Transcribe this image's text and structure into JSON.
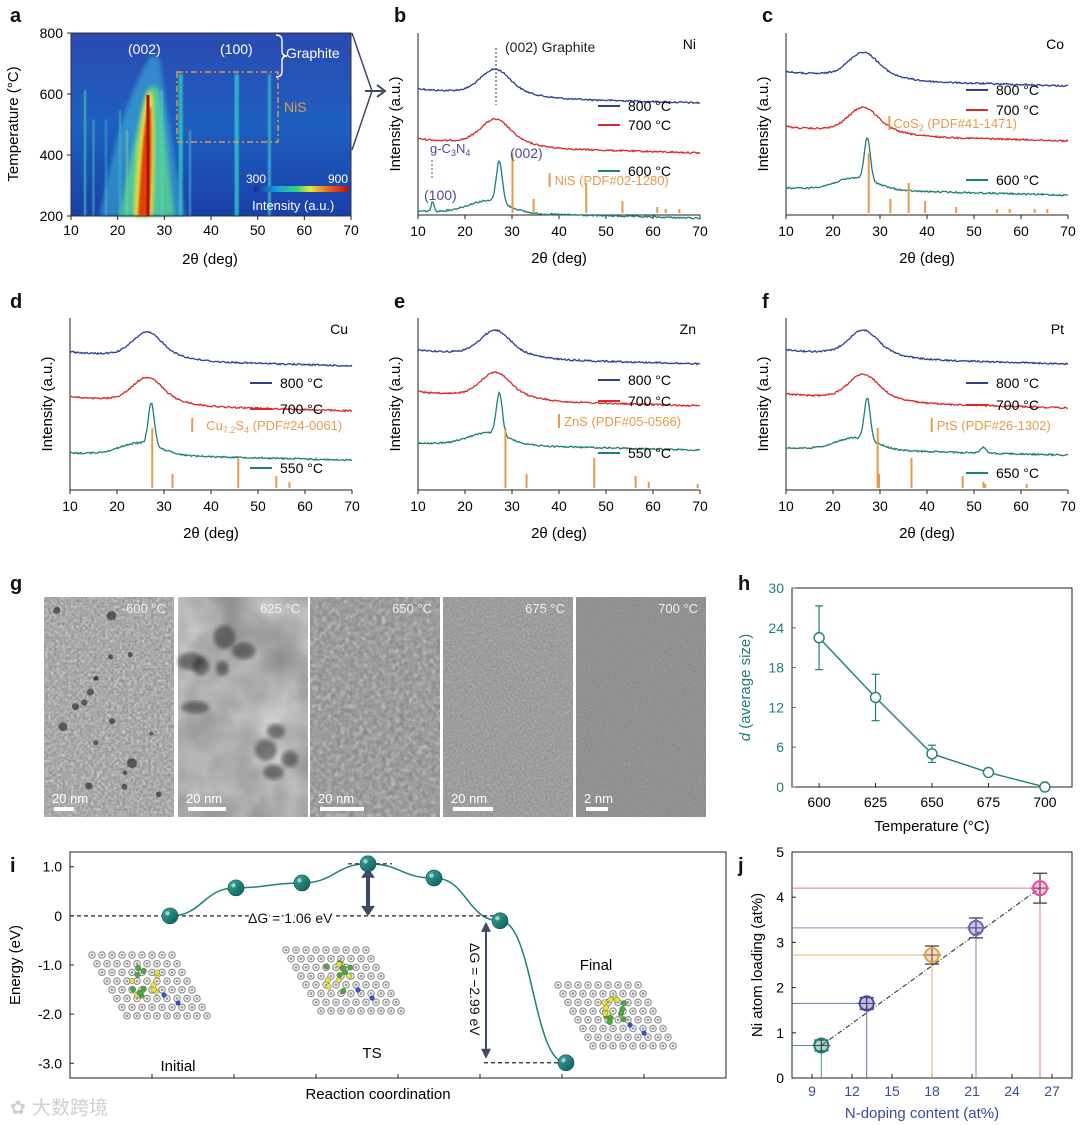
{
  "panel_letters": {
    "a": "a",
    "b": "b",
    "c": "c",
    "d": "d",
    "e": "e",
    "f": "f",
    "g": "g",
    "h": "h",
    "i": "i",
    "j": "j"
  },
  "common": {
    "xlabel_theta": "2θ (deg)",
    "ylabel_intensity": "Intensity (a.u.)",
    "x_ticks": [
      "10",
      "20",
      "30",
      "40",
      "50",
      "60",
      "70"
    ]
  },
  "colors": {
    "c800": "#2e3f94",
    "c700": "#d92a2a",
    "clow": "#1e7f78",
    "ref": "#e89a4a",
    "purple": "#5a55a8",
    "dark": "#1a1a1a"
  },
  "panel_a": {
    "ylabel": "Temperature (°C)",
    "y_ticks": [
      "800",
      "600",
      "400",
      "200"
    ],
    "label_002": "(002)",
    "label_100": "(100)",
    "label_graphite": "Graphite",
    "label_nis": "NiS",
    "cbar_min": "300",
    "cbar_max": "900",
    "cbar_label": "Intensity (a.u.)"
  },
  "xrd_panels": [
    {
      "metal": "Ni",
      "temps": [
        "800 °C",
        "700 °C",
        "600 °C"
      ],
      "ref": "NiS (PDF#02-1280)",
      "ann": {
        "graphite": "(002) Graphite",
        "gcn": "g-C3N4",
        "p002": "(002)",
        "p100": "(100)"
      }
    },
    {
      "metal": "Co",
      "temps": [
        "800 °C",
        "700 °C",
        "600 °C"
      ],
      "ref": "CoS2 (PDF#41-1471)"
    },
    {
      "metal": "Cu",
      "temps": [
        "800 °C",
        "700 °C",
        "550 °C"
      ],
      "ref": "Cu7.2S4 (PDF#24-0061)"
    },
    {
      "metal": "Zn",
      "temps": [
        "800 °C",
        "700 °C",
        "550 °C"
      ],
      "ref": "ZnS (PDF#05-0566)"
    },
    {
      "metal": "Pt",
      "temps": [
        "800 °C",
        "700 °C",
        "650 °C"
      ],
      "ref": "PtS (PDF#26-1302)"
    }
  ],
  "panel_g": {
    "images": [
      {
        "temp": "600 °C",
        "scale": "20 nm"
      },
      {
        "temp": "625 °C",
        "scale": "20 nm"
      },
      {
        "temp": "650 °C",
        "scale": "20 nm"
      },
      {
        "temp": "675 °C",
        "scale": "20 nm"
      },
      {
        "temp": "700 °C",
        "scale": "2 nm"
      }
    ]
  },
  "chart_data": [
    {
      "panel": "h",
      "type": "line",
      "x": [
        600,
        625,
        650,
        675,
        700
      ],
      "values": [
        22.5,
        13.5,
        5.0,
        2.2,
        0.0
      ],
      "errors": [
        4.8,
        3.5,
        1.3,
        0.4,
        0.1
      ],
      "x_ticks": [
        "600",
        "625",
        "650",
        "675",
        "700"
      ],
      "y_ticks": [
        "0",
        "6",
        "12",
        "18",
        "24",
        "30"
      ],
      "xlim": [
        588,
        712
      ],
      "ylim": [
        0,
        30
      ],
      "xlabel": "Temperature (°C)",
      "ylabel_italic": "d",
      "ylabel_rest": " (average size)"
    },
    {
      "panel": "i",
      "type": "line",
      "values": [
        0,
        0.57,
        0.67,
        1.06,
        0.77,
        -0.1,
        -2.99
      ],
      "y_ticks": [
        "1.0",
        "0",
        "-1.0",
        "-2.0",
        "-3.0"
      ],
      "ylim": [
        -3.3,
        1.3
      ],
      "ylabel": "Energy (eV)",
      "xlabel": "Reaction coordination",
      "dg1": "ΔG = 1.06 eV",
      "dg2": "ΔG = −2.99 eV",
      "states": [
        "Initial",
        "TS",
        "Final"
      ]
    },
    {
      "panel": "j",
      "type": "scatter",
      "x": [
        9.7,
        13.1,
        18.0,
        21.3,
        26.1
      ],
      "values": [
        0.72,
        1.65,
        2.72,
        3.32,
        4.2
      ],
      "errors": [
        0.12,
        0.13,
        0.2,
        0.22,
        0.33
      ],
      "x_ticks": [
        "9",
        "12",
        "15",
        "18",
        "21",
        "24",
        "27"
      ],
      "y_ticks": [
        "0",
        "1",
        "2",
        "3",
        "4",
        "5"
      ],
      "xlim": [
        7.5,
        28.5
      ],
      "ylim": [
        0,
        5
      ],
      "xlabel": "N-doping content (at%)",
      "ylabel": "Ni atom loading (at%)",
      "point_colors": [
        "#1e7f78",
        "#4a4aa5",
        "#e0a24a",
        "#6a6ab5",
        "#e0509a"
      ]
    }
  ],
  "watermark": "大数跨境"
}
